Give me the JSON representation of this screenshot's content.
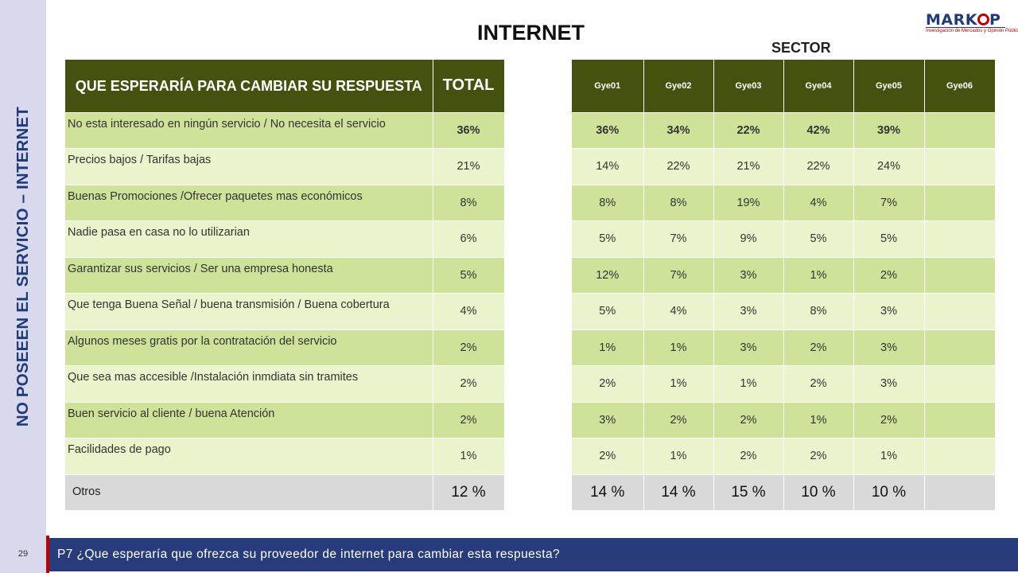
{
  "sidebar": {
    "title": "NO POSEEEN EL SERVICIO – INTERNET",
    "page_number": "29"
  },
  "header": {
    "title": "INTERNET",
    "sector_label": "SECTOR"
  },
  "logo": {
    "name": "MARKOP",
    "tagline": "Investigación de Mercados y Opinión Pública",
    "colors": {
      "primary": "#1f3b7a",
      "accent": "#c00000"
    }
  },
  "footer": {
    "question": "P7 ¿Que esperaría que ofrezca su proveedor de internet para cambiar esta respuesta?"
  },
  "table": {
    "header_question": "QUE ESPERARÍA PARA CAMBIAR SU RESPUESTA",
    "header_total": "TOTAL",
    "sectors": [
      "Gye01",
      "Gye02",
      "Gye03",
      "Gye04",
      "Gye05",
      "Gye06"
    ],
    "rows": [
      {
        "label": "No esta interesado en ningún servicio / No necesita el servicio",
        "total": "36%",
        "values": [
          "36%",
          "34%",
          "22%",
          "42%",
          "39%",
          ""
        ]
      },
      {
        "label": "Precios bajos / Tarifas bajas",
        "total": "21%",
        "values": [
          "14%",
          "22%",
          "21%",
          "22%",
          "24%",
          ""
        ]
      },
      {
        "label": "Buenas Promociones /Ofrecer paquetes mas económicos",
        "total": "8%",
        "values": [
          "8%",
          "8%",
          "19%",
          "4%",
          "7%",
          ""
        ]
      },
      {
        "label": "Nadie pasa en casa no lo utilizarian",
        "total": "6%",
        "values": [
          "5%",
          "7%",
          "9%",
          "5%",
          "5%",
          ""
        ]
      },
      {
        "label": "Garantizar sus servicios / Ser una empresa honesta",
        "total": "5%",
        "values": [
          "12%",
          "7%",
          "3%",
          "1%",
          "2%",
          ""
        ]
      },
      {
        "label": "Que tenga Buena Señal / buena transmisión / Buena cobertura",
        "total": "4%",
        "values": [
          "5%",
          "4%",
          "3%",
          "8%",
          "3%",
          ""
        ]
      },
      {
        "label": "Algunos meses gratis por la contratación del servicio",
        "total": "2%",
        "values": [
          "1%",
          "1%",
          "3%",
          "2%",
          "3%",
          ""
        ]
      },
      {
        "label": "Que sea mas accesible /Instalación inmdiata sin tramites",
        "total": "2%",
        "values": [
          "2%",
          "1%",
          "1%",
          "2%",
          "3%",
          ""
        ]
      },
      {
        "label": "Buen servicio al  cliente / buena Atención",
        "total": "2%",
        "values": [
          "3%",
          "2%",
          "2%",
          "1%",
          "2%",
          ""
        ]
      },
      {
        "label": "Facilidades de pago",
        "total": "1%",
        "values": [
          "2%",
          "1%",
          "2%",
          "2%",
          "1%",
          ""
        ]
      },
      {
        "label": "Otros",
        "total": "12 %",
        "values": [
          "14 %",
          "14 %",
          "15 %",
          "10 %",
          "10 %",
          ""
        ]
      }
    ]
  }
}
